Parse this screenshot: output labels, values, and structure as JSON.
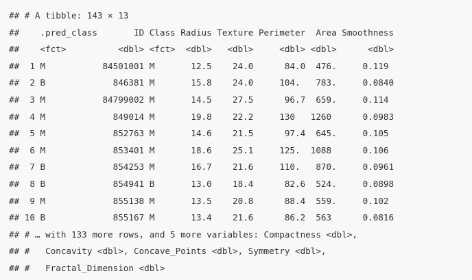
{
  "output": {
    "lines": [
      "## # A tibble: 143 × 13",
      "##    .pred_class       ID Class Radius Texture Perimeter  Area Smoothness",
      "##    <fct>          <dbl> <fct>  <dbl>   <dbl>     <dbl> <dbl>      <dbl>",
      "##  1 M           84501001 M       12.5    24.0      84.0  476.     0.119 ",
      "##  2 B             846381 M       15.8    24.0     104.   783.     0.0840",
      "##  3 M           84799002 M       14.5    27.5      96.7  659.     0.114 ",
      "##  4 M             849014 M       19.8    22.2     130   1260      0.0983",
      "##  5 M             852763 M       14.6    21.5      97.4  645.     0.105 ",
      "##  6 M             853401 M       18.6    25.1     125.  1088      0.106 ",
      "##  7 B             854253 M       16.7    21.6     110.   870.     0.0961",
      "##  8 B             854941 B       13.0    18.4      82.6  524.     0.0898",
      "##  9 M             855138 M       13.5    20.8      88.4  559.     0.102 ",
      "## 10 B             855167 M       13.4    21.6      86.2  563      0.0816",
      "## # … with 133 more rows, and 5 more variables: Compactness <dbl>,",
      "## #   Concavity <dbl>, Concave_Points <dbl>, Symmetry <dbl>,",
      "## #   Fractal_Dimension <dbl>"
    ]
  }
}
